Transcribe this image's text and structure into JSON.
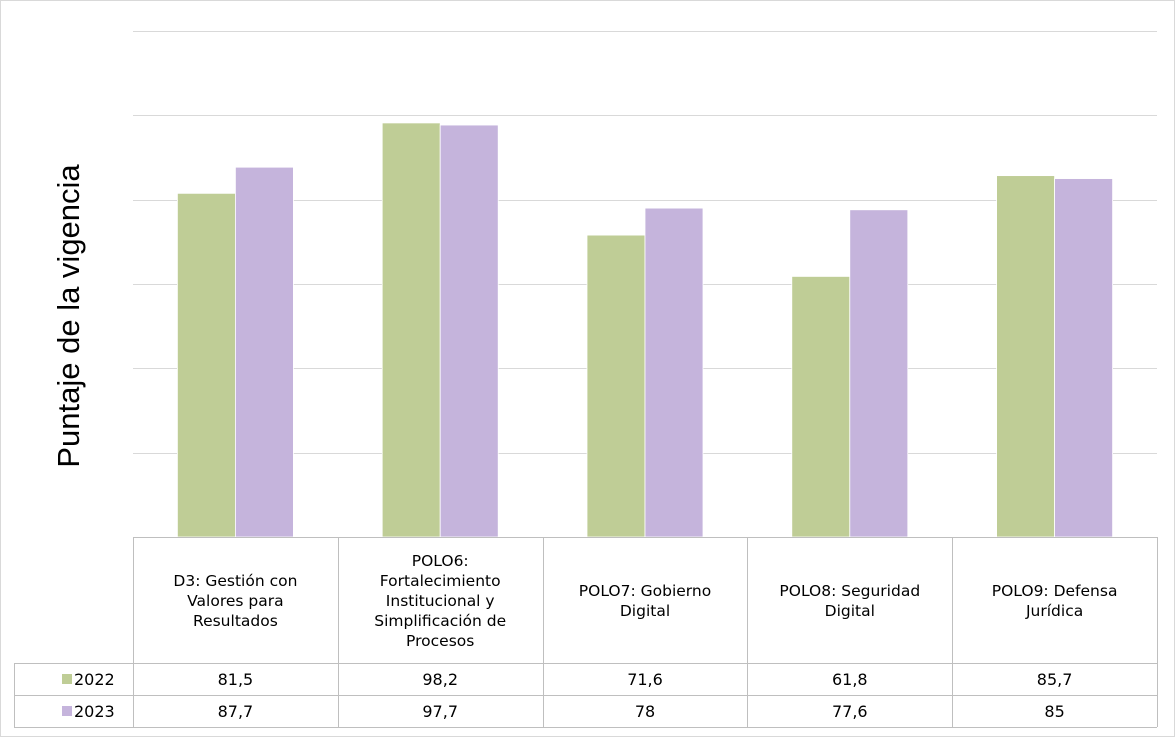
{
  "chart_data": {
    "type": "bar",
    "ylabel": "Puntaje de la vigencia",
    "ylim": [
      0,
      120
    ],
    "grid": true,
    "categories": [
      "D3: Gestión con Valores para Resultados",
      "POLO6: Fortalecimiento Institucional y Simplificación de Procesos",
      "POLO7: Gobierno Digital",
      "POLO8: Seguridad Digital",
      "POLO9: Defensa Jurídica"
    ],
    "category_lines": [
      [
        "D3: Gestión con",
        "Valores para",
        "Resultados"
      ],
      [
        "POLO6:",
        "Fortalecimiento",
        "Institucional y",
        "Simplificación de",
        "Procesos"
      ],
      [
        "POLO7: Gobierno",
        "Digital"
      ],
      [
        "POLO8: Seguridad",
        "Digital"
      ],
      [
        "POLO9: Defensa",
        "Jurídica"
      ]
    ],
    "series": [
      {
        "name": "2022",
        "color": "#bfcd96",
        "values": [
          81.5,
          98.2,
          71.6,
          61.8,
          85.7
        ],
        "labels": [
          "81,5",
          "98,2",
          "71,6",
          "61,8",
          "85,7"
        ]
      },
      {
        "name": "2023",
        "color": "#c5b4dc",
        "values": [
          87.7,
          97.7,
          78,
          77.6,
          85
        ],
        "labels": [
          "87,7",
          "97,7",
          "78",
          "77,6",
          "85"
        ]
      }
    ],
    "legend_placement": "data-table"
  }
}
